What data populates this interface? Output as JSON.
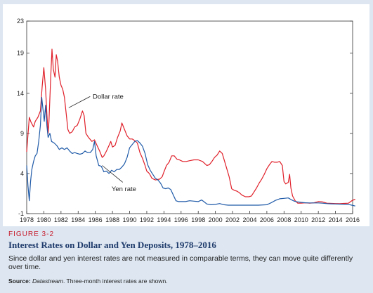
{
  "figure": {
    "label": "FIGURE 3-2",
    "title": "Interest Rates on Dollar and Yen Deposits, 1978–2016",
    "description": "Since dollar and yen interest rates are not measured in comparable terms, they can move quite differently over time.",
    "source_label": "Source:",
    "source_name": "Datastream",
    "source_note": ". Three-month interest rates are shown."
  },
  "colors": {
    "dollar": "#e0202a",
    "yen": "#1f5aa8",
    "frame": "#1f3b6b",
    "accent": "#c8202f"
  },
  "chart_data": {
    "type": "line",
    "title": "",
    "xlabel": "",
    "ylabel": "",
    "xlim": [
      1978,
      2016
    ],
    "ylim": [
      -1,
      23
    ],
    "grid": false,
    "x_ticks": [
      "1978",
      "1980",
      "1982",
      "1984",
      "1986",
      "1988",
      "1990",
      "1992",
      "1994",
      "1996",
      "1998",
      "2000",
      "2002",
      "2004",
      "2006",
      "2008",
      "2010",
      "2012",
      "2014",
      "2016"
    ],
    "y_ticks": [
      "-1",
      "4",
      "9",
      "14",
      "19",
      "23"
    ],
    "annotations": [
      {
        "text": "Dollar rate",
        "series": "dollar"
      },
      {
        "text": "Yen rate",
        "series": "yen"
      }
    ],
    "series": [
      {
        "id": "dollar",
        "points": [
          [
            1978.0,
            6.7
          ],
          [
            1978.3,
            11.0
          ],
          [
            1978.5,
            10.4
          ],
          [
            1978.8,
            9.8
          ],
          [
            1979.0,
            10.5
          ],
          [
            1979.3,
            11.0
          ],
          [
            1979.6,
            11.8
          ],
          [
            1979.8,
            14.8
          ],
          [
            1980.0,
            17.2
          ],
          [
            1980.2,
            14.5
          ],
          [
            1980.35,
            11.5
          ],
          [
            1980.5,
            9.0
          ],
          [
            1980.6,
            10.5
          ],
          [
            1980.8,
            16.0
          ],
          [
            1980.95,
            19.5
          ],
          [
            1981.1,
            17.0
          ],
          [
            1981.3,
            16.0
          ],
          [
            1981.45,
            18.8
          ],
          [
            1981.6,
            18.0
          ],
          [
            1981.8,
            16.0
          ],
          [
            1982.0,
            15.0
          ],
          [
            1982.2,
            14.5
          ],
          [
            1982.4,
            13.5
          ],
          [
            1982.6,
            11.5
          ],
          [
            1982.8,
            9.5
          ],
          [
            1983.0,
            9.0
          ],
          [
            1983.3,
            9.2
          ],
          [
            1983.6,
            9.8
          ],
          [
            1983.9,
            10.0
          ],
          [
            1984.2,
            10.8
          ],
          [
            1984.5,
            11.8
          ],
          [
            1984.7,
            11.2
          ],
          [
            1984.9,
            9.0
          ],
          [
            1985.2,
            8.5
          ],
          [
            1985.6,
            8.0
          ],
          [
            1985.9,
            8.2
          ],
          [
            1986.2,
            7.5
          ],
          [
            1986.5,
            6.8
          ],
          [
            1986.8,
            6.0
          ],
          [
            1987.0,
            6.2
          ],
          [
            1987.3,
            6.8
          ],
          [
            1987.6,
            7.5
          ],
          [
            1987.8,
            8.0
          ],
          [
            1988.0,
            7.3
          ],
          [
            1988.3,
            7.5
          ],
          [
            1988.6,
            8.5
          ],
          [
            1988.9,
            9.3
          ],
          [
            1989.1,
            10.3
          ],
          [
            1989.4,
            9.5
          ],
          [
            1989.7,
            8.7
          ],
          [
            1990.0,
            8.3
          ],
          [
            1990.3,
            8.3
          ],
          [
            1990.6,
            8.1
          ],
          [
            1990.9,
            7.8
          ],
          [
            1991.2,
            6.6
          ],
          [
            1991.5,
            5.9
          ],
          [
            1991.8,
            5.0
          ],
          [
            1992.0,
            4.3
          ],
          [
            1992.3,
            4.0
          ],
          [
            1992.6,
            3.4
          ],
          [
            1993.0,
            3.2
          ],
          [
            1993.5,
            3.3
          ],
          [
            1993.8,
            3.6
          ],
          [
            1994.0,
            4.2
          ],
          [
            1994.3,
            5.0
          ],
          [
            1994.6,
            5.4
          ],
          [
            1994.9,
            6.2
          ],
          [
            1995.2,
            6.2
          ],
          [
            1995.5,
            5.8
          ],
          [
            1995.8,
            5.7
          ],
          [
            1996.2,
            5.5
          ],
          [
            1996.6,
            5.5
          ],
          [
            1997.0,
            5.6
          ],
          [
            1997.5,
            5.7
          ],
          [
            1998.0,
            5.7
          ],
          [
            1998.5,
            5.5
          ],
          [
            1998.8,
            5.2
          ],
          [
            1999.0,
            5.0
          ],
          [
            1999.3,
            5.1
          ],
          [
            1999.6,
            5.5
          ],
          [
            1999.9,
            6.0
          ],
          [
            2000.2,
            6.3
          ],
          [
            2000.5,
            6.8
          ],
          [
            2000.8,
            6.5
          ],
          [
            2001.0,
            5.8
          ],
          [
            2001.3,
            4.7
          ],
          [
            2001.6,
            3.6
          ],
          [
            2001.9,
            2.1
          ],
          [
            2002.2,
            1.9
          ],
          [
            2002.5,
            1.8
          ],
          [
            2002.8,
            1.6
          ],
          [
            2003.1,
            1.3
          ],
          [
            2003.5,
            1.1
          ],
          [
            2003.9,
            1.1
          ],
          [
            2004.2,
            1.2
          ],
          [
            2004.5,
            1.7
          ],
          [
            2004.8,
            2.2
          ],
          [
            2005.1,
            2.8
          ],
          [
            2005.4,
            3.3
          ],
          [
            2005.7,
            3.9
          ],
          [
            2006.0,
            4.6
          ],
          [
            2006.3,
            5.1
          ],
          [
            2006.6,
            5.5
          ],
          [
            2006.9,
            5.4
          ],
          [
            2007.2,
            5.4
          ],
          [
            2007.5,
            5.5
          ],
          [
            2007.8,
            5.0
          ],
          [
            2008.0,
            3.0
          ],
          [
            2008.2,
            2.7
          ],
          [
            2008.5,
            2.9
          ],
          [
            2008.65,
            3.9
          ],
          [
            2008.8,
            2.2
          ],
          [
            2009.0,
            1.2
          ],
          [
            2009.3,
            0.6
          ],
          [
            2009.6,
            0.3
          ],
          [
            2010.0,
            0.3
          ],
          [
            2010.5,
            0.35
          ],
          [
            2011.0,
            0.3
          ],
          [
            2011.5,
            0.35
          ],
          [
            2012.0,
            0.5
          ],
          [
            2012.5,
            0.45
          ],
          [
            2013.0,
            0.3
          ],
          [
            2013.5,
            0.27
          ],
          [
            2014.0,
            0.25
          ],
          [
            2014.5,
            0.24
          ],
          [
            2015.0,
            0.27
          ],
          [
            2015.5,
            0.3
          ],
          [
            2015.9,
            0.6
          ],
          [
            2016.3,
            0.8
          ]
        ]
      },
      {
        "id": "yen",
        "points": [
          [
            1978.0,
            5.0
          ],
          [
            1978.15,
            2.5
          ],
          [
            1978.3,
            0.6
          ],
          [
            1978.45,
            3.0
          ],
          [
            1978.6,
            4.5
          ],
          [
            1978.8,
            5.5
          ],
          [
            1979.0,
            6.2
          ],
          [
            1979.2,
            6.5
          ],
          [
            1979.4,
            8.0
          ],
          [
            1979.6,
            10.0
          ],
          [
            1979.75,
            13.5
          ],
          [
            1979.9,
            12.0
          ],
          [
            1980.05,
            10.5
          ],
          [
            1980.2,
            12.5
          ],
          [
            1980.35,
            10.0
          ],
          [
            1980.5,
            8.5
          ],
          [
            1980.7,
            9.0
          ],
          [
            1980.9,
            8.0
          ],
          [
            1981.2,
            7.8
          ],
          [
            1981.5,
            7.5
          ],
          [
            1981.8,
            7.0
          ],
          [
            1982.1,
            7.2
          ],
          [
            1982.4,
            7.0
          ],
          [
            1982.7,
            7.2
          ],
          [
            1983.0,
            6.8
          ],
          [
            1983.3,
            6.5
          ],
          [
            1983.6,
            6.6
          ],
          [
            1983.9,
            6.5
          ],
          [
            1984.2,
            6.4
          ],
          [
            1984.5,
            6.5
          ],
          [
            1984.8,
            6.8
          ],
          [
            1985.1,
            6.6
          ],
          [
            1985.4,
            6.6
          ],
          [
            1985.7,
            7.0
          ],
          [
            1985.9,
            8.0
          ],
          [
            1986.1,
            6.2
          ],
          [
            1986.4,
            5.0
          ],
          [
            1986.7,
            4.9
          ],
          [
            1987.0,
            4.2
          ],
          [
            1987.3,
            4.3
          ],
          [
            1987.6,
            4.0
          ],
          [
            1987.9,
            4.4
          ],
          [
            1988.2,
            4.2
          ],
          [
            1988.5,
            4.5
          ],
          [
            1988.8,
            4.5
          ],
          [
            1989.1,
            4.8
          ],
          [
            1989.4,
            5.2
          ],
          [
            1989.7,
            6.0
          ],
          [
            1990.0,
            7.2
          ],
          [
            1990.3,
            7.6
          ],
          [
            1990.6,
            8.0
          ],
          [
            1990.9,
            8.1
          ],
          [
            1991.2,
            7.8
          ],
          [
            1991.5,
            7.4
          ],
          [
            1991.8,
            6.5
          ],
          [
            1992.1,
            5.1
          ],
          [
            1992.4,
            4.4
          ],
          [
            1992.7,
            3.9
          ],
          [
            1993.0,
            3.4
          ],
          [
            1993.3,
            3.2
          ],
          [
            1993.6,
            2.8
          ],
          [
            1993.9,
            2.2
          ],
          [
            1994.2,
            2.1
          ],
          [
            1994.5,
            2.2
          ],
          [
            1994.8,
            2.0
          ],
          [
            1995.1,
            1.3
          ],
          [
            1995.4,
            0.6
          ],
          [
            1995.7,
            0.5
          ],
          [
            1996.0,
            0.5
          ],
          [
            1996.5,
            0.5
          ],
          [
            1997.0,
            0.6
          ],
          [
            1997.5,
            0.55
          ],
          [
            1998.0,
            0.5
          ],
          [
            1998.4,
            0.7
          ],
          [
            1998.7,
            0.45
          ],
          [
            1999.0,
            0.2
          ],
          [
            1999.5,
            0.1
          ],
          [
            2000.0,
            0.15
          ],
          [
            2000.5,
            0.25
          ],
          [
            2001.0,
            0.1
          ],
          [
            2001.5,
            0.05
          ],
          [
            2002.0,
            0.05
          ],
          [
            2003.0,
            0.05
          ],
          [
            2004.0,
            0.05
          ],
          [
            2005.0,
            0.05
          ],
          [
            2006.0,
            0.1
          ],
          [
            2006.5,
            0.35
          ],
          [
            2007.0,
            0.65
          ],
          [
            2007.5,
            0.85
          ],
          [
            2008.0,
            0.9
          ],
          [
            2008.5,
            0.95
          ],
          [
            2008.9,
            0.7
          ],
          [
            2009.2,
            0.55
          ],
          [
            2009.6,
            0.45
          ],
          [
            2010.0,
            0.4
          ],
          [
            2010.5,
            0.35
          ],
          [
            2011.0,
            0.33
          ],
          [
            2011.5,
            0.33
          ],
          [
            2012.0,
            0.33
          ],
          [
            2012.5,
            0.3
          ],
          [
            2013.0,
            0.24
          ],
          [
            2013.5,
            0.22
          ],
          [
            2014.0,
            0.2
          ],
          [
            2014.5,
            0.18
          ],
          [
            2015.0,
            0.17
          ],
          [
            2015.5,
            0.15
          ],
          [
            2015.9,
            0.05
          ],
          [
            2016.3,
            -0.05
          ]
        ]
      }
    ]
  }
}
